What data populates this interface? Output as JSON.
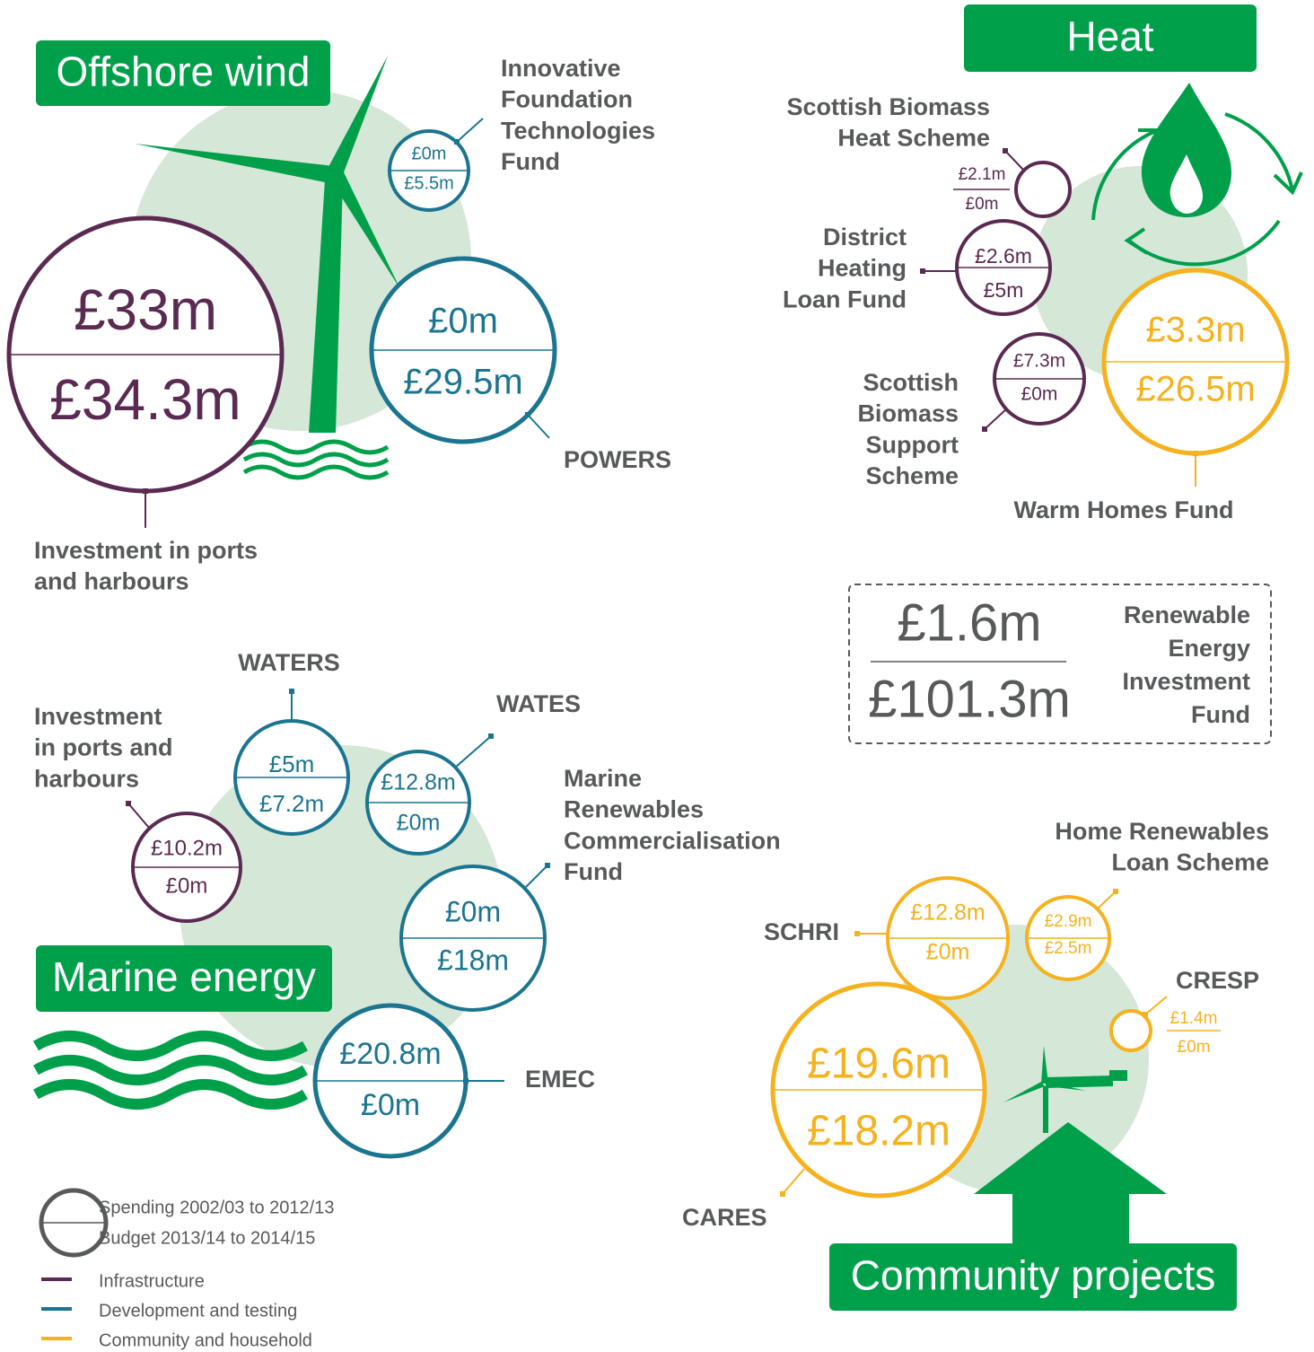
{
  "offshore_wind": {
    "title": "Offshore wind",
    "funds": [
      {
        "name": [
          "Investment in ports",
          "and harbours"
        ],
        "spending": "£33m",
        "budget": "£34.3m"
      },
      {
        "name": [
          "Innovative",
          "Foundation",
          "Technologies",
          "Fund"
        ],
        "spending": "£0m",
        "budget": "£5.5m"
      },
      {
        "name": [
          "POWERS"
        ],
        "spending": "£0m",
        "budget": "£29.5m"
      }
    ]
  },
  "heat": {
    "title": "Heat",
    "funds": [
      {
        "name": [
          "Scottish Biomass",
          "Heat Scheme"
        ],
        "spending": "£2.1m",
        "budget": "£0m"
      },
      {
        "name": [
          "District",
          "Heating",
          "Loan Fund"
        ],
        "spending": "£2.6m",
        "budget": "£5m"
      },
      {
        "name": [
          "Scottish",
          "Biomass",
          "Support",
          "Scheme"
        ],
        "spending": "£7.3m",
        "budget": "£0m"
      },
      {
        "name": [
          "Warm Homes Fund"
        ],
        "spending": "£3.3m",
        "budget": "£26.5m"
      }
    ]
  },
  "total": {
    "name": [
      "Renewable",
      "Energy",
      "Investment",
      "Fund"
    ],
    "spending": "£1.6m",
    "budget": "£101.3m"
  },
  "marine_energy": {
    "title": "Marine energy",
    "funds": [
      {
        "name": [
          "WATERS"
        ],
        "spending": "£5m",
        "budget": "£7.2m"
      },
      {
        "name": [
          "WATES"
        ],
        "spending": "£12.8m",
        "budget": "£0m"
      },
      {
        "name": [
          "Investment",
          "in ports and",
          "harbours"
        ],
        "spending": "£10.2m",
        "budget": "£0m"
      },
      {
        "name": [
          "Marine",
          "Renewables",
          "Commercialisation",
          "Fund"
        ],
        "spending": "£0m",
        "budget": "£18m"
      },
      {
        "name": [
          "EMEC"
        ],
        "spending": "£20.8m",
        "budget": "£0m"
      }
    ]
  },
  "community_projects": {
    "title": "Community projects",
    "funds": [
      {
        "name": [
          "SCHRI"
        ],
        "spending": "£12.8m",
        "budget": "£0m"
      },
      {
        "name": [
          "Home Renewables",
          "Loan Scheme"
        ],
        "spending": "£2.9m",
        "budget": "£2.5m"
      },
      {
        "name": [
          "CRESP"
        ],
        "spending": "£1.4m",
        "budget": "£0m"
      },
      {
        "name": [
          "CARES"
        ],
        "spending": "£19.6m",
        "budget": "£18.2m"
      }
    ]
  },
  "legend": {
    "circle": [
      "Spending 2002/03 to 2012/13",
      "Budget 2013/14 to 2014/15"
    ],
    "items": [
      "Infrastructure",
      "Development and testing",
      "Community and household"
    ]
  }
}
